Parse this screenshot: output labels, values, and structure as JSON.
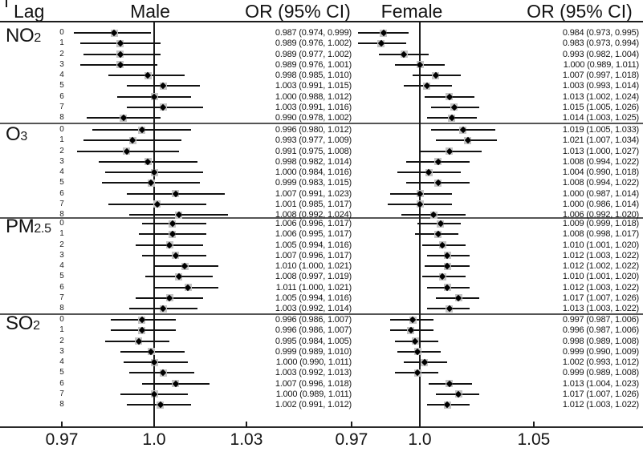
{
  "header": {
    "lag": "Lag",
    "male": "Male",
    "or_left": "OR (95% CI)",
    "female": "Female",
    "or_right": "OR (95% CI)"
  },
  "colors": {
    "background": "#ffffff",
    "text": "#131313",
    "ci_line": "#121212",
    "marker": "#000000",
    "marker_halo": "#c4c4c4",
    "section_divider": "#555555",
    "axis_line": "#2a2a2a"
  },
  "chart_data": {
    "type": "forest",
    "title": "",
    "columns": [
      "Lag",
      "Male",
      "OR (95% CI)",
      "Female",
      "OR (95% CI)"
    ],
    "lags": [
      "0",
      "1",
      "2",
      "3",
      "4",
      "5",
      "6",
      "7",
      "8"
    ],
    "axes": {
      "male": {
        "ticks": [
          "0.97",
          "1.0",
          "1.03"
        ],
        "reference": 1.0,
        "range": [
          0.965,
          1.035
        ]
      },
      "female": {
        "ticks": [
          "0.97",
          "1.0",
          "1.05"
        ],
        "reference": 1.0,
        "range": [
          0.96,
          1.07
        ]
      }
    },
    "groups": [
      {
        "name": "NO2",
        "label": "NO",
        "sub": "2",
        "male": [
          "0.987 (0.974, 0.999)",
          "0.989 (0.976, 1.002)",
          "0.989 (0.977, 1.002)",
          "0.989 (0.976, 1.001)",
          "0.998 (0.985, 1.010)",
          "1.003 (0.991, 1.015)",
          "1.000 (0.988, 1.012)",
          "1.003 (0.991, 1.016)",
          "0.990 (0.978, 1.002)"
        ],
        "female": [
          "0.984 (0.973, 0.995)",
          "0.983 (0.973, 0.994)",
          "0.993 (0.982, 1.004)",
          "1.000 (0.989, 1.011)",
          "1.007 (0.997, 1.018)",
          "1.003 (0.993, 1.014)",
          "1.013 (1.002, 1.024)",
          "1.015 (1.005, 1.026)",
          "1.014 (1.003, 1.025)"
        ]
      },
      {
        "name": "O3",
        "label": "O",
        "sub": "3",
        "male": [
          "0.996 (0.980, 1.012)",
          "0.993 (0.977, 1.009)",
          "0.991 (0.975, 1.008)",
          "0.998 (0.982, 1.014)",
          "1.000 (0.984, 1.016)",
          "0.999 (0.983, 1.015)",
          "1.007 (0.991, 1.023)",
          "1.001 (0.985, 1.017)",
          "1.008 (0.992, 1.024)"
        ],
        "female": [
          "1.019 (1.005, 1.033)",
          "1.021 (1.007, 1.034)",
          "1.013 (1.000, 1.027)",
          "1.008 (0.994, 1.022)",
          "1.004 (0.990, 1.018)",
          "1.008 (0.994, 1.022)",
          "1.000 (0.987, 1.014)",
          "1.000 (0.986, 1.014)",
          "1.006 (0.992, 1.020)"
        ]
      },
      {
        "name": "PM2.5",
        "label": "PM",
        "sub": "2.5",
        "male": [
          "1.006 (0.996, 1.017)",
          "1.006 (0.995, 1.017)",
          "1.005 (0.994, 1.016)",
          "1.007 (0.996, 1.017)",
          "1.010 (1.000, 1.021)",
          "1.008 (0.997, 1.019)",
          "1.011 (1.000, 1.021)",
          "1.005 (0.994, 1.016)",
          "1.003 (0.992, 1.014)"
        ],
        "female": [
          "1.009 (0.999, 1.018)",
          "1.008 (0.998, 1.017)",
          "1.010 (1.001, 1.020)",
          "1.012 (1.003, 1.022)",
          "1.012 (1.002, 1.022)",
          "1.010 (1.001, 1.020)",
          "1.012 (1.003, 1.022)",
          "1.017 (1.007, 1.026)",
          "1.013 (1.003, 1.022)"
        ]
      },
      {
        "name": "SO2",
        "label": "SO",
        "sub": "2",
        "male": [
          "0.996 (0.986, 1.007)",
          "0.996 (0.986, 1.007)",
          "0.995 (0.984, 1.005)",
          "0.999 (0.989, 1.010)",
          "1.000 (0.990, 1.011)",
          "1.003 (0.992, 1.013)",
          "1.007 (0.996, 1.018)",
          "1.000 (0.989, 1.011)",
          "1.002 (0.991, 1.012)"
        ],
        "female": [
          "0.997 (0.987, 1.006)",
          "0.996 (0.987, 1.006)",
          "0.998 (0.989, 1.008)",
          "0.999 (0.990, 1.009)",
          "1.002 (0.993, 1.012)",
          "0.999 (0.989, 1.008)",
          "1.013 (1.004, 1.023)",
          "1.017 (1.007, 1.026)",
          "1.012 (1.003, 1.022)"
        ]
      }
    ]
  }
}
